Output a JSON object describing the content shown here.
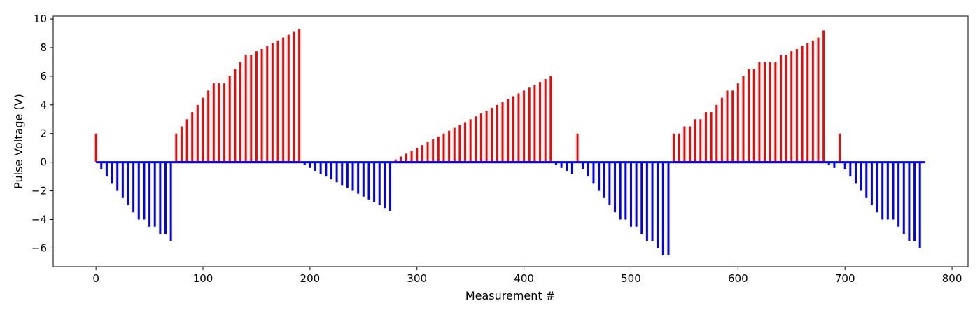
{
  "chart_data": {
    "type": "bar",
    "title": "",
    "xlabel": "Measurement #",
    "ylabel": "Pulse Voltage (V)",
    "xlim": [
      -40,
      815
    ],
    "ylim": [
      -7.3,
      10.2
    ],
    "xticks": [
      0,
      100,
      200,
      300,
      400,
      500,
      600,
      700,
      800
    ],
    "yticks": [
      -6,
      -4,
      -2,
      0,
      2,
      4,
      6,
      8,
      10
    ],
    "grid": false,
    "legend": "none",
    "baseline": {
      "from": 0,
      "to": 775
    },
    "colors": {
      "positive": "#ff0000",
      "negative": "#0000ff"
    },
    "series": [
      {
        "color": "#ff0000",
        "x": [
          0,
          75,
          80,
          85,
          90,
          95,
          100,
          105,
          110,
          115,
          120,
          125,
          130,
          135,
          140,
          145,
          150,
          155,
          160,
          165,
          170,
          175,
          180,
          185,
          190,
          280,
          285,
          290,
          295,
          300,
          305,
          310,
          315,
          320,
          325,
          330,
          335,
          340,
          345,
          350,
          355,
          360,
          365,
          370,
          375,
          380,
          385,
          390,
          395,
          400,
          405,
          410,
          415,
          420,
          425,
          450,
          540,
          545,
          550,
          555,
          560,
          565,
          570,
          575,
          580,
          585,
          590,
          595,
          600,
          605,
          610,
          615,
          620,
          625,
          630,
          635,
          640,
          645,
          650,
          655,
          660,
          665,
          670,
          675,
          680,
          695
        ],
        "values": [
          2.0,
          2.0,
          2.5,
          3.0,
          3.5,
          4.0,
          4.5,
          5.0,
          5.5,
          5.5,
          5.5,
          6.0,
          6.5,
          7.0,
          7.5,
          7.5,
          7.75,
          7.9,
          8.1,
          8.3,
          8.5,
          8.7,
          8.9,
          9.1,
          9.3,
          0.2,
          0.4,
          0.6,
          0.8,
          1.0,
          1.2,
          1.4,
          1.6,
          1.8,
          2.0,
          2.2,
          2.4,
          2.6,
          2.8,
          3.0,
          3.2,
          3.4,
          3.6,
          3.8,
          4.0,
          4.2,
          4.4,
          4.6,
          4.8,
          5.0,
          5.2,
          5.4,
          5.6,
          5.8,
          6.0,
          2.0,
          2.0,
          2.0,
          2.5,
          2.5,
          3.0,
          3.0,
          3.5,
          3.5,
          4.0,
          4.5,
          5.0,
          5.0,
          5.5,
          6.0,
          6.5,
          6.5,
          7.0,
          7.0,
          7.0,
          7.0,
          7.5,
          7.5,
          7.75,
          7.9,
          8.1,
          8.3,
          8.5,
          8.7,
          9.2,
          2.0
        ]
      },
      {
        "color": "#0000ff",
        "x": [
          5,
          10,
          15,
          20,
          25,
          30,
          35,
          40,
          45,
          50,
          55,
          60,
          65,
          70,
          195,
          200,
          205,
          210,
          215,
          220,
          225,
          230,
          235,
          240,
          245,
          250,
          255,
          260,
          265,
          270,
          275,
          430,
          435,
          440,
          445,
          455,
          460,
          465,
          470,
          475,
          480,
          485,
          490,
          495,
          500,
          505,
          510,
          515,
          520,
          525,
          530,
          535,
          685,
          690,
          700,
          705,
          710,
          715,
          720,
          725,
          730,
          735,
          740,
          745,
          750,
          755,
          760,
          765,
          770
        ],
        "values": [
          -0.5,
          -1.0,
          -1.5,
          -2.0,
          -2.5,
          -3.0,
          -3.5,
          -4.0,
          -4.0,
          -4.5,
          -4.5,
          -5.0,
          -5.0,
          -5.5,
          -0.2,
          -0.4,
          -0.6,
          -0.8,
          -1.0,
          -1.2,
          -1.4,
          -1.6,
          -1.8,
          -2.0,
          -2.2,
          -2.4,
          -2.6,
          -2.8,
          -3.0,
          -3.2,
          -3.4,
          -0.2,
          -0.4,
          -0.6,
          -0.8,
          -0.5,
          -1.0,
          -1.5,
          -2.0,
          -2.5,
          -3.0,
          -3.5,
          -4.0,
          -4.0,
          -4.5,
          -4.5,
          -5.0,
          -5.5,
          -5.5,
          -6.0,
          -6.5,
          -6.5,
          -0.2,
          -0.4,
          -0.5,
          -1.0,
          -1.5,
          -2.0,
          -2.5,
          -3.0,
          -3.5,
          -4.0,
          -4.0,
          -4.0,
          -4.5,
          -5.0,
          -5.5,
          -5.5,
          -6.0
        ]
      }
    ]
  }
}
